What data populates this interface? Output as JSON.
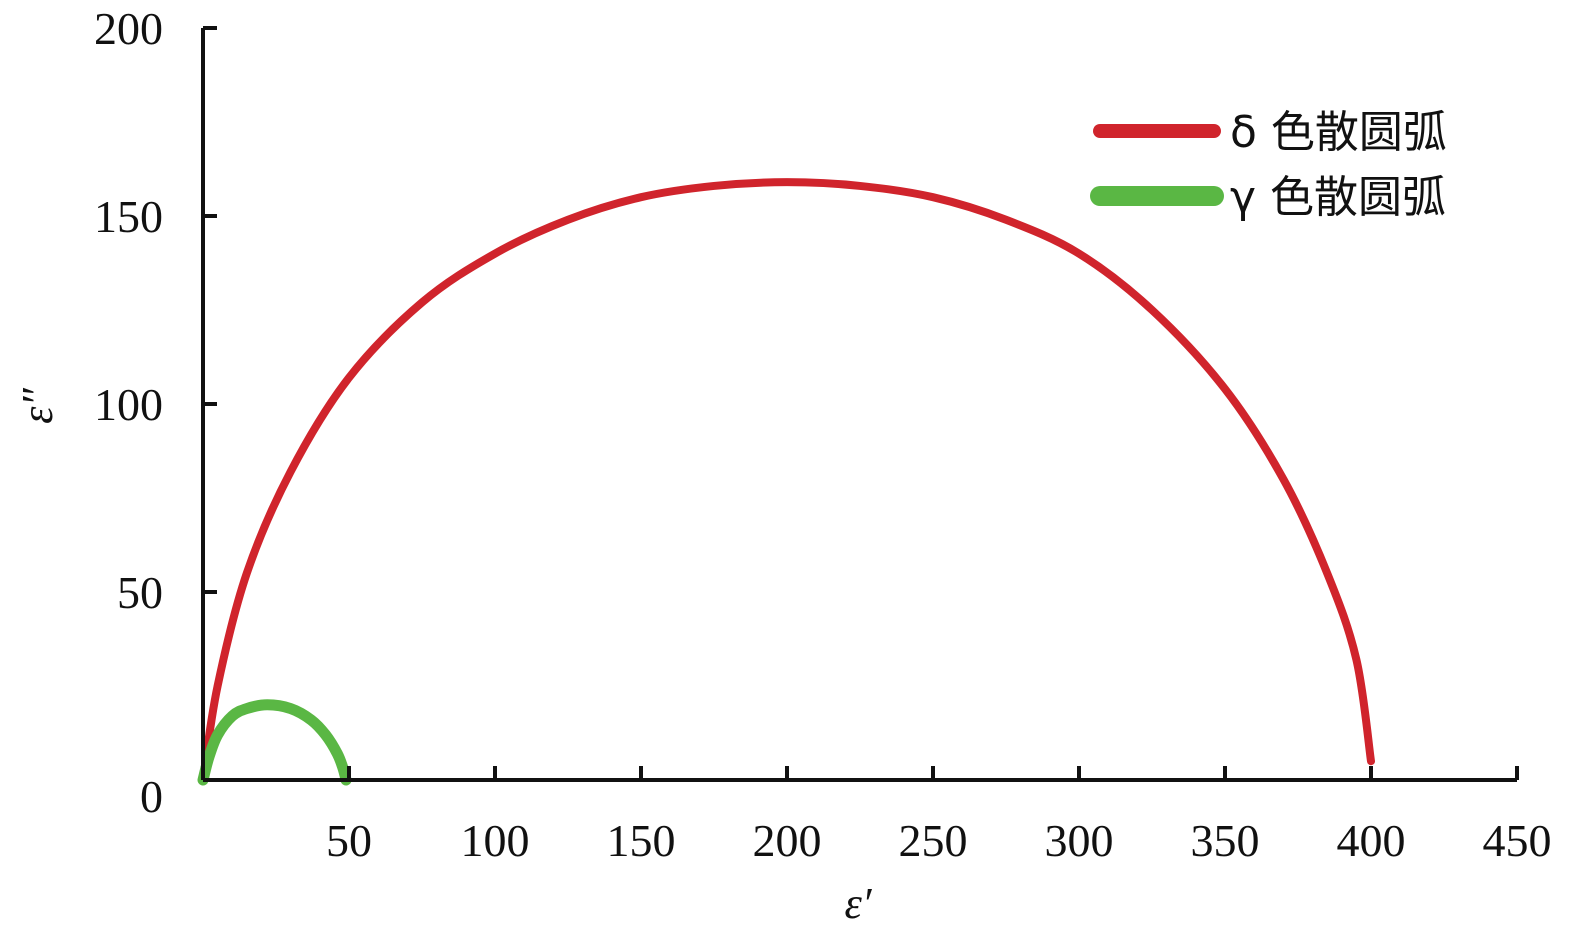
{
  "chart_data": {
    "type": "line",
    "xlabel": "ε′",
    "ylabel": "ε″",
    "xlim": [
      0,
      450
    ],
    "ylim": [
      0,
      200
    ],
    "x_ticks": [
      "50",
      "100",
      "150",
      "200",
      "250",
      "300",
      "350",
      "400",
      "450"
    ],
    "y_ticks": [
      "0",
      "50",
      "100",
      "150",
      "200"
    ],
    "grid": false,
    "legend_position": "top-right",
    "series": [
      {
        "name": "δ 色散圆弧",
        "color": "#d0242c",
        "x": [
          0,
          5,
          15,
          30,
          50,
          75,
          100,
          125,
          150,
          175,
          200,
          225,
          250,
          275,
          300,
          325,
          350,
          370,
          385,
          395,
          400
        ],
        "y": [
          0,
          25,
          55,
          82,
          107,
          127,
          140,
          149,
          155,
          158,
          159,
          158,
          155,
          149,
          140,
          125,
          104,
          80,
          55,
          32,
          5
        ]
      },
      {
        "name": "γ 色散圆弧",
        "color": "#5ab744",
        "x": [
          0,
          2,
          5,
          10,
          15,
          22,
          30,
          37,
          42,
          46,
          48,
          49
        ],
        "y": [
          0,
          6,
          12,
          17,
          19,
          20,
          19,
          16,
          12,
          7,
          3,
          0
        ]
      }
    ]
  }
}
